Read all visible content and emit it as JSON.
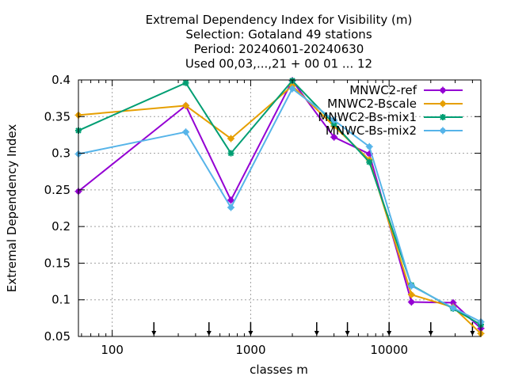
{
  "chart_data": {
    "type": "line",
    "title_lines": [
      "Extremal Dependency Index  for Visibility (m)",
      "Selection: Gotaland     49 stations",
      "Period: 20240601-20240630",
      "Used 00,03,...,21 + 00 01 ... 12"
    ],
    "xlabel": "classes m",
    "ylabel": "Extremal Dependency Index",
    "x_scale": "log",
    "xlim": [
      57,
      46000
    ],
    "ylim": [
      0.05,
      0.4
    ],
    "x_ticks": [
      100,
      1000,
      10000
    ],
    "x_tick_labels": [
      "100",
      "1000",
      "10000"
    ],
    "y_ticks": [
      0.05,
      0.1,
      0.15,
      0.2,
      0.25,
      0.3,
      0.35,
      0.4
    ],
    "y_tick_labels": [
      "0.05",
      "0.1",
      "0.15",
      "0.2",
      "0.25",
      "0.3",
      "0.35",
      "0.4"
    ],
    "threshold_markers": [
      200,
      500,
      1000,
      3000,
      5000,
      10000,
      20000,
      40000
    ],
    "grid": true,
    "legend_position": "top-right",
    "x": [
      57,
      340,
      720,
      2000,
      4000,
      7200,
      14500,
      29000,
      46000
    ],
    "series": [
      {
        "name": "MNWC2-ref",
        "color": "#9400d3",
        "marker": "plus",
        "values": [
          0.248,
          0.365,
          0.236,
          0.399,
          0.322,
          0.299,
          0.097,
          0.096,
          0.061
        ]
      },
      {
        "name": "MNWC2-Bscale",
        "color": "#e69f00",
        "marker": "plus",
        "values": [
          0.352,
          0.365,
          0.32,
          0.392,
          0.337,
          0.291,
          0.107,
          0.09,
          0.054
        ]
      },
      {
        "name": "MNWC2-Bs-mix1",
        "color": "#009e73",
        "marker": "star",
        "values": [
          0.331,
          0.396,
          0.3,
          0.399,
          0.34,
          0.288,
          0.12,
          0.088,
          0.066
        ]
      },
      {
        "name": "MNWC-Bs-mix2",
        "color": "#56b4e9",
        "marker": "plus",
        "values": [
          0.299,
          0.329,
          0.226,
          0.388,
          0.345,
          0.309,
          0.119,
          0.089,
          0.07
        ]
      }
    ]
  }
}
